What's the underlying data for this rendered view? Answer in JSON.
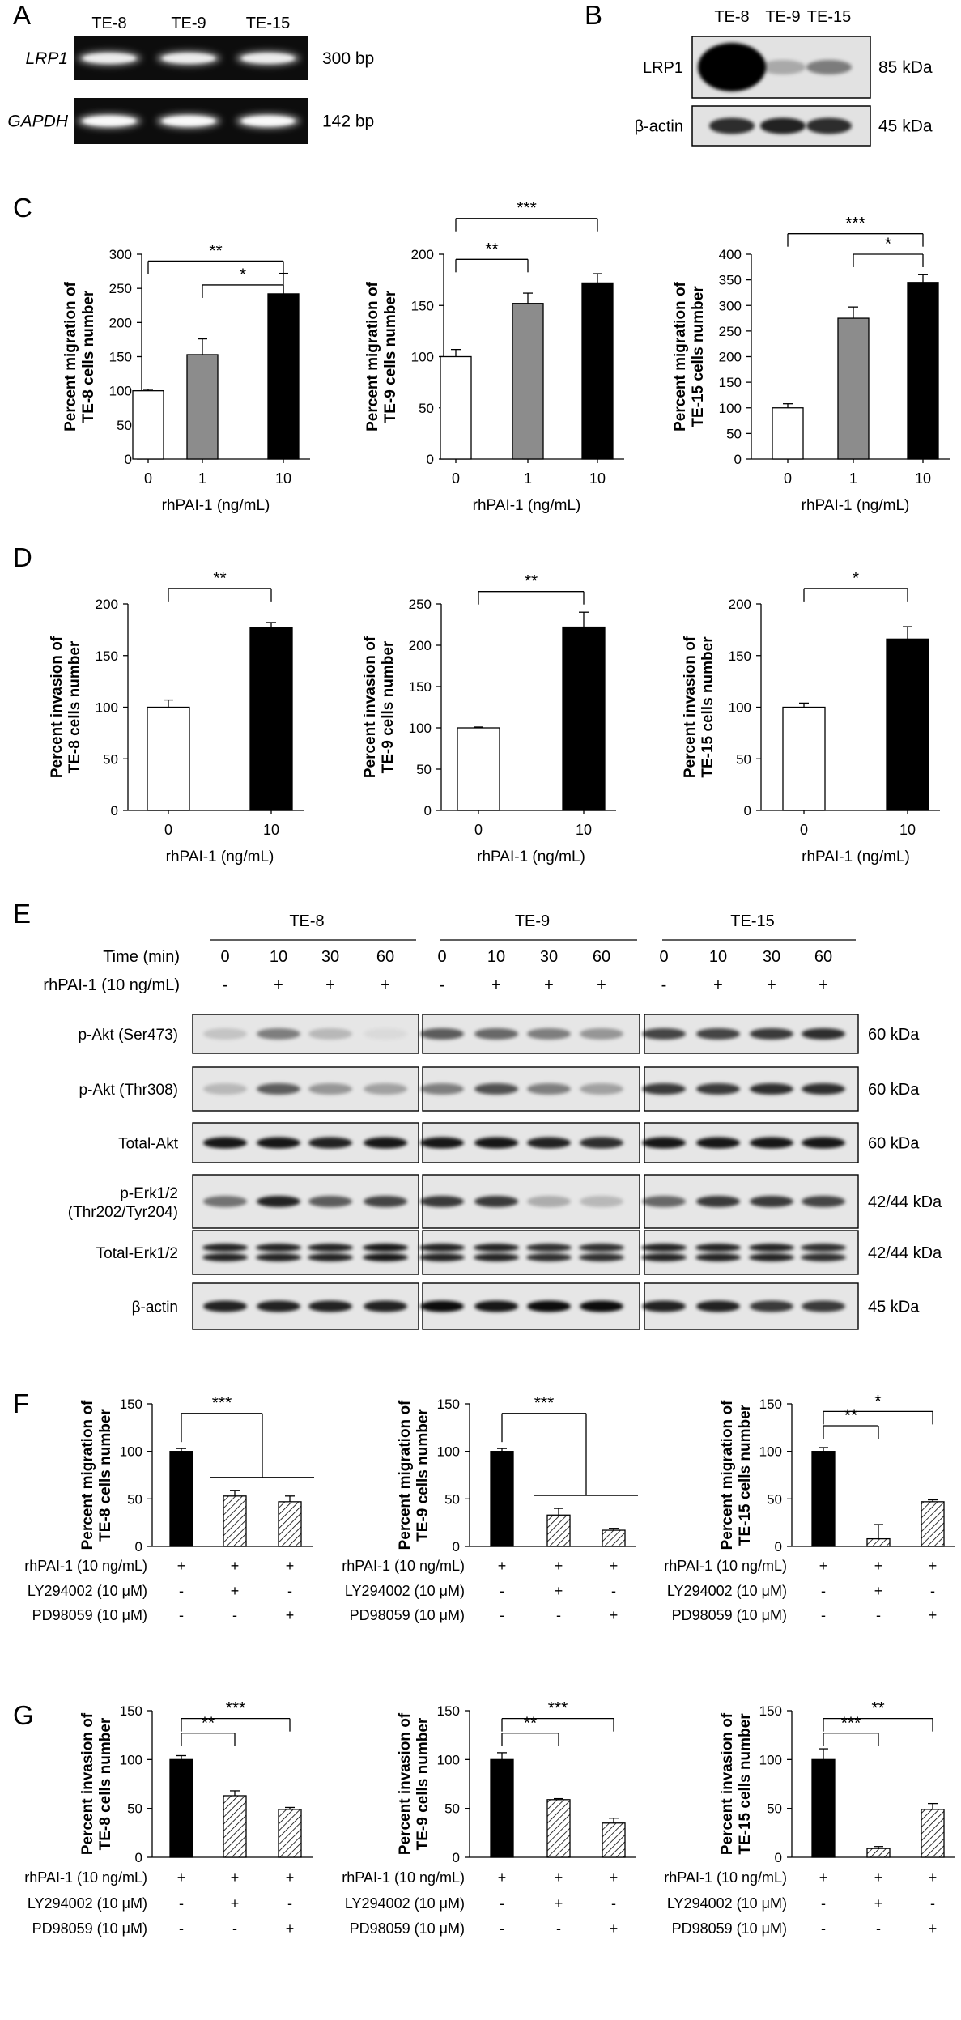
{
  "panel_letters": [
    "A",
    "B",
    "C",
    "D",
    "E",
    "F",
    "G"
  ],
  "panel_a": {
    "samples": [
      "TE-8",
      "TE-9",
      "TE-15"
    ],
    "rows": [
      {
        "name": "LRP1",
        "size": "300 bp",
        "intensity": [
          0.85,
          0.85,
          0.85
        ]
      },
      {
        "name": "GAPDH",
        "size": "142 bp",
        "intensity": [
          0.95,
          0.95,
          0.95
        ]
      }
    ]
  },
  "panel_b": {
    "samples": [
      "TE-8",
      "TE-9",
      "TE-15"
    ],
    "rows": [
      {
        "name": "LRP1",
        "size": "85 kDa",
        "intensity": [
          1.0,
          0.25,
          0.45
        ]
      },
      {
        "name": "β-actin",
        "size": "45 kDa",
        "intensity": [
          0.8,
          0.85,
          0.8
        ]
      }
    ]
  },
  "panel_e": {
    "groups": [
      "TE-8",
      "TE-9",
      "TE-15"
    ],
    "time_label": "Time (min)",
    "treat_label": "rhPAI-1 (10 ng/mL)",
    "times": [
      "0",
      "10",
      "30",
      "60"
    ],
    "treat_marks": [
      "-",
      "+",
      "+",
      "+"
    ],
    "rows": [
      {
        "name": "p-Akt (Ser473)",
        "size": "60 kDa",
        "intensity": [
          [
            0.15,
            0.45,
            0.2,
            0.05
          ],
          [
            0.6,
            0.55,
            0.45,
            0.35
          ],
          [
            0.7,
            0.7,
            0.75,
            0.8
          ]
        ]
      },
      {
        "name": "p-Akt (Thr308)",
        "size": "60 kDa",
        "intensity": [
          [
            0.2,
            0.6,
            0.35,
            0.3
          ],
          [
            0.45,
            0.65,
            0.45,
            0.3
          ],
          [
            0.75,
            0.75,
            0.8,
            0.8
          ]
        ]
      },
      {
        "name": "Total-Akt",
        "size": "60 kDa",
        "intensity": [
          [
            0.9,
            0.9,
            0.85,
            0.9
          ],
          [
            0.9,
            0.9,
            0.85,
            0.8
          ],
          [
            0.9,
            0.9,
            0.9,
            0.9
          ]
        ]
      },
      {
        "name": "p-Erk1/2 (Thr202/Tyr204)",
        "size": "42/44 kDa",
        "intensity": [
          [
            0.5,
            0.85,
            0.6,
            0.7
          ],
          [
            0.75,
            0.75,
            0.25,
            0.2
          ],
          [
            0.55,
            0.75,
            0.75,
            0.7
          ]
        ]
      },
      {
        "name": "Total-Erk1/2",
        "size": "42/44 kDa",
        "intensity": [
          [
            0.85,
            0.85,
            0.85,
            0.9
          ],
          [
            0.85,
            0.85,
            0.8,
            0.8
          ],
          [
            0.85,
            0.85,
            0.85,
            0.8
          ]
        ]
      },
      {
        "name": "β-actin",
        "size": "45 kDa",
        "intensity": [
          [
            0.85,
            0.85,
            0.85,
            0.85
          ],
          [
            0.95,
            0.9,
            0.95,
            0.95
          ],
          [
            0.85,
            0.85,
            0.75,
            0.75
          ]
        ]
      }
    ]
  },
  "treatment_rows": [
    {
      "label": "rhPAI-1 (10 ng/mL)",
      "marks": [
        "+",
        "+",
        "+"
      ]
    },
    {
      "label": "LY294002 (10 μM)",
      "marks": [
        "-",
        "+",
        "-"
      ]
    },
    {
      "label": "PD98059 (10 μM)",
      "marks": [
        "-",
        "-",
        "+"
      ]
    }
  ],
  "chart_data": [
    {
      "panel": "C",
      "type": "bar",
      "title": "",
      "xlabel": "rhPAI-1 (ng/mL)",
      "ylabel": "Percent migration of TE-8 cells number",
      "categories": [
        "0",
        "1",
        "10"
      ],
      "values": [
        100,
        153,
        242
      ],
      "errors": [
        2,
        23,
        30
      ],
      "fills": [
        "white",
        "gray",
        "black"
      ],
      "ylim": [
        0,
        300
      ],
      "yticks": [
        0,
        50,
        100,
        150,
        200,
        250,
        300
      ],
      "sig": [
        {
          "from": 0,
          "to": 2,
          "label": "**",
          "y": 290
        },
        {
          "from": 1,
          "to": 2,
          "label": "*",
          "y": 255
        }
      ]
    },
    {
      "panel": "C",
      "type": "bar",
      "title": "",
      "xlabel": "rhPAI-1 (ng/mL)",
      "ylabel": "Percent migration of TE-9 cells number",
      "categories": [
        "0",
        "1",
        "10"
      ],
      "values": [
        100,
        152,
        172
      ],
      "errors": [
        7,
        10,
        9
      ],
      "fills": [
        "white",
        "gray",
        "black"
      ],
      "ylim": [
        0,
        200
      ],
      "yticks": [
        0,
        50,
        100,
        150,
        200
      ],
      "sig": [
        {
          "from": 0,
          "to": 2,
          "label": "***",
          "y": 235
        },
        {
          "from": 0,
          "to": 1,
          "label": "**",
          "y": 195
        }
      ]
    },
    {
      "panel": "C",
      "type": "bar",
      "title": "",
      "xlabel": "rhPAI-1 (ng/mL)",
      "ylabel": "Percent migration of TE-15 cells number",
      "categories": [
        "0",
        "1",
        "10"
      ],
      "values": [
        100,
        275,
        345
      ],
      "errors": [
        8,
        22,
        15
      ],
      "fills": [
        "white",
        "gray",
        "black"
      ],
      "ylim": [
        0,
        400
      ],
      "yticks": [
        0,
        50,
        100,
        150,
        200,
        250,
        300,
        350,
        400
      ],
      "sig": [
        {
          "from": 0,
          "to": 2,
          "label": "***",
          "y": 440
        },
        {
          "from": 1,
          "to": 2,
          "label": "*",
          "y": 400
        }
      ]
    },
    {
      "panel": "D",
      "type": "bar",
      "title": "",
      "xlabel": "rhPAI-1 (ng/mL)",
      "ylabel": "Percent invasion of TE-8 cells number",
      "categories": [
        "0",
        "10"
      ],
      "values": [
        100,
        177
      ],
      "errors": [
        7,
        5
      ],
      "fills": [
        "white",
        "black"
      ],
      "ylim": [
        0,
        200
      ],
      "yticks": [
        0,
        50,
        100,
        150,
        200
      ],
      "sig": [
        {
          "from": 0,
          "to": 1,
          "label": "**",
          "y": 215
        }
      ]
    },
    {
      "panel": "D",
      "type": "bar",
      "title": "",
      "xlabel": "rhPAI-1 (ng/mL)",
      "ylabel": "Percent invasion of TE-9 cells number",
      "categories": [
        "0",
        "10"
      ],
      "values": [
        100,
        222
      ],
      "errors": [
        1,
        18
      ],
      "fills": [
        "white",
        "black"
      ],
      "ylim": [
        0,
        250
      ],
      "yticks": [
        0,
        50,
        100,
        150,
        200,
        250
      ],
      "sig": [
        {
          "from": 0,
          "to": 1,
          "label": "**",
          "y": 265
        }
      ]
    },
    {
      "panel": "D",
      "type": "bar",
      "title": "",
      "xlabel": "rhPAI-1 (ng/mL)",
      "ylabel": "Percent invasion of TE-15 cells number",
      "categories": [
        "0",
        "10"
      ],
      "values": [
        100,
        166
      ],
      "errors": [
        4,
        12
      ],
      "fills": [
        "white",
        "black"
      ],
      "ylim": [
        0,
        200
      ],
      "yticks": [
        0,
        50,
        100,
        150,
        200
      ],
      "sig": [
        {
          "from": 0,
          "to": 1,
          "label": "*",
          "y": 215
        }
      ]
    },
    {
      "panel": "F",
      "type": "bar",
      "title": "",
      "xlabel": "",
      "ylabel": "Percent migration of TE-8 cells number",
      "categories": [
        "rhPAI-1",
        "rhPAI-1 + LY294002",
        "rhPAI-1 + PD98059"
      ],
      "values": [
        100,
        53,
        47
      ],
      "errors": [
        3,
        6,
        6
      ],
      "fills": [
        "black",
        "hatch",
        "hatch"
      ],
      "ylim": [
        0,
        150
      ],
      "yticks": [
        0,
        50,
        100,
        150
      ],
      "sig": [
        {
          "from": 0,
          "to": 1.5,
          "label": "***",
          "y": 140,
          "bracket": "group"
        }
      ]
    },
    {
      "panel": "F",
      "type": "bar",
      "title": "",
      "xlabel": "",
      "ylabel": "Percent migration of TE-9 cells number",
      "categories": [
        "rhPAI-1",
        "rhPAI-1 + LY294002",
        "rhPAI-1 + PD98059"
      ],
      "values": [
        100,
        33,
        17
      ],
      "errors": [
        3,
        7,
        2
      ],
      "fills": [
        "black",
        "hatch",
        "hatch"
      ],
      "ylim": [
        0,
        150
      ],
      "yticks": [
        0,
        50,
        100,
        150
      ],
      "sig": [
        {
          "from": 0,
          "to": 1.5,
          "label": "***",
          "y": 140,
          "bracket": "group"
        }
      ]
    },
    {
      "panel": "F",
      "type": "bar",
      "title": "",
      "xlabel": "",
      "ylabel": "Percent migration of TE-15 cells number",
      "categories": [
        "rhPAI-1",
        "rhPAI-1 + LY294002",
        "rhPAI-1 + PD98059"
      ],
      "values": [
        100,
        8,
        47
      ],
      "errors": [
        4,
        15,
        2
      ],
      "fills": [
        "black",
        "hatch",
        "hatch"
      ],
      "ylim": [
        0,
        150
      ],
      "yticks": [
        0,
        50,
        100,
        150
      ],
      "sig": [
        {
          "from": 0,
          "to": 2,
          "label": "*",
          "y": 142
        },
        {
          "from": 0,
          "to": 1,
          "label": "**",
          "y": 127
        }
      ]
    },
    {
      "panel": "G",
      "type": "bar",
      "title": "",
      "xlabel": "",
      "ylabel": "Percent invasion of TE-8 cells number",
      "categories": [
        "rhPAI-1",
        "rhPAI-1 + LY294002",
        "rhPAI-1 + PD98059"
      ],
      "values": [
        100,
        63,
        49
      ],
      "errors": [
        4,
        5,
        2
      ],
      "fills": [
        "black",
        "hatch",
        "hatch"
      ],
      "ylim": [
        0,
        150
      ],
      "yticks": [
        0,
        50,
        100,
        150
      ],
      "sig": [
        {
          "from": 0,
          "to": 2,
          "label": "***",
          "y": 142
        },
        {
          "from": 0,
          "to": 1,
          "label": "**",
          "y": 127
        }
      ]
    },
    {
      "panel": "G",
      "type": "bar",
      "title": "",
      "xlabel": "",
      "ylabel": "Percent invasion of TE-9 cells number",
      "categories": [
        "rhPAI-1",
        "rhPAI-1 + LY294002",
        "rhPAI-1 + PD98059"
      ],
      "values": [
        100,
        59,
        35
      ],
      "errors": [
        7,
        1,
        5
      ],
      "fills": [
        "black",
        "hatch",
        "hatch"
      ],
      "ylim": [
        0,
        150
      ],
      "yticks": [
        0,
        50,
        100,
        150
      ],
      "sig": [
        {
          "from": 0,
          "to": 2,
          "label": "***",
          "y": 142
        },
        {
          "from": 0,
          "to": 1,
          "label": "**",
          "y": 127
        }
      ]
    },
    {
      "panel": "G",
      "type": "bar",
      "title": "",
      "xlabel": "",
      "ylabel": "Percent invasion of TE-15 cells number",
      "categories": [
        "rhPAI-1",
        "rhPAI-1 + LY294002",
        "rhPAI-1 + PD98059"
      ],
      "values": [
        100,
        9,
        49
      ],
      "errors": [
        11,
        2,
        6
      ],
      "fills": [
        "black",
        "hatch",
        "hatch"
      ],
      "ylim": [
        0,
        150
      ],
      "yticks": [
        0,
        50,
        100,
        150
      ],
      "sig": [
        {
          "from": 0,
          "to": 2,
          "label": "**",
          "y": 142
        },
        {
          "from": 0,
          "to": 1,
          "label": "***",
          "y": 127
        }
      ]
    }
  ]
}
